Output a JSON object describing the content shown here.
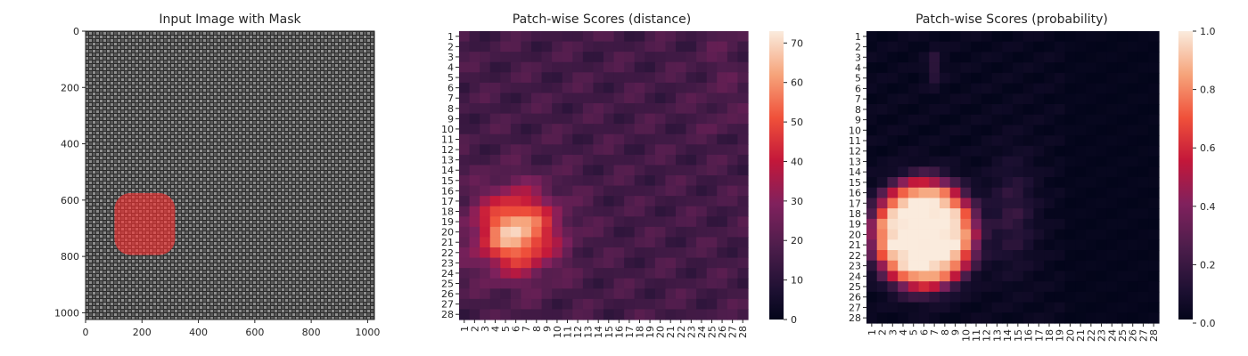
{
  "chart_data": [
    {
      "type": "image",
      "title": "Input Image with Mask",
      "x_ticks": [
        "0",
        "200",
        "400",
        "600",
        "800",
        "1000"
      ],
      "y_ticks": [
        "0",
        "200",
        "400",
        "600",
        "800",
        "1000"
      ],
      "xlim": [
        0,
        1024
      ],
      "ylim": [
        1024,
        0
      ],
      "mask": {
        "center_x": 210,
        "center_y": 685,
        "width": 215,
        "height": 220,
        "color": "#ff3030"
      }
    },
    {
      "type": "heatmap",
      "title": "Patch-wise Scores (distance)",
      "rows": 28,
      "cols": 28,
      "x_ticks": [
        "1",
        "2",
        "3",
        "4",
        "5",
        "6",
        "7",
        "8",
        "9",
        "10",
        "11",
        "12",
        "13",
        "14",
        "15",
        "16",
        "17",
        "18",
        "19",
        "20",
        "21",
        "22",
        "23",
        "24",
        "25",
        "26",
        "27",
        "28"
      ],
      "y_ticks": [
        "1",
        "2",
        "3",
        "4",
        "5",
        "6",
        "7",
        "8",
        "9",
        "10",
        "11",
        "12",
        "13",
        "14",
        "15",
        "16",
        "17",
        "18",
        "19",
        "20",
        "21",
        "22",
        "23",
        "24",
        "25",
        "26",
        "27",
        "28"
      ],
      "colorbar_ticks": [
        "0",
        "10",
        "20",
        "30",
        "40",
        "50",
        "60",
        "70"
      ],
      "vmin": 0,
      "vmax": 73,
      "colormap": "rocket",
      "hotspot": {
        "row": 20,
        "col": 6,
        "peak": 73
      }
    },
    {
      "type": "heatmap",
      "title": "Patch-wise Scores (probability)",
      "rows": 28,
      "cols": 28,
      "x_ticks": [
        "1",
        "2",
        "3",
        "4",
        "5",
        "6",
        "7",
        "8",
        "9",
        "10",
        "11",
        "12",
        "13",
        "14",
        "15",
        "16",
        "17",
        "18",
        "19",
        "20",
        "21",
        "22",
        "23",
        "24",
        "25",
        "26",
        "27",
        "28"
      ],
      "y_ticks": [
        "1",
        "2",
        "3",
        "4",
        "5",
        "6",
        "7",
        "8",
        "9",
        "10",
        "11",
        "12",
        "13",
        "14",
        "15",
        "16",
        "17",
        "18",
        "19",
        "20",
        "21",
        "22",
        "23",
        "24",
        "25",
        "26",
        "27",
        "28"
      ],
      "colorbar_ticks": [
        "0.0",
        "0.2",
        "0.4",
        "0.6",
        "0.8",
        "1.0"
      ],
      "vmin": 0,
      "vmax": 1,
      "colormap": "rocket",
      "hotspot": {
        "row": 20,
        "col": 6,
        "peak": 1.0
      }
    }
  ]
}
